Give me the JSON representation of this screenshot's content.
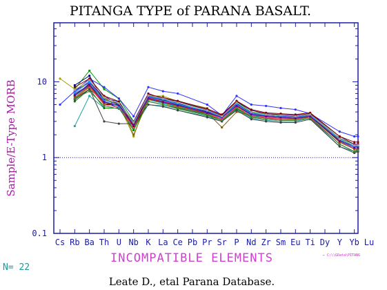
{
  "chart_data": {
    "type": "line",
    "title": "PITANGA TYPE of PARANA BASALT.",
    "ylabel": "Sample/E-Type MORB",
    "xlabel": "INCOMPATIBLE ELEMENTS",
    "categories": [
      "Cs",
      "Rb",
      "Ba",
      "Th",
      "U",
      "Nb",
      "K",
      "La",
      "Ce",
      "Pb",
      "Pr",
      "Sr",
      "P",
      "Nd",
      "Zr",
      "Sm",
      "Eu",
      "Ti",
      "Dy",
      "Y",
      "Yb",
      "Lu"
    ],
    "y_scale": "log",
    "ylim": [
      0.1,
      60
    ],
    "y_ticks": [
      "0.1",
      "1",
      "10"
    ],
    "reference_line": 1,
    "grid": false,
    "sample_count_label": "N= 22",
    "source_path": "← C:\\\\GData\\PITANG",
    "footer": "Leate D., etal Parana Database.",
    "series_colors": [
      "#000000",
      "#1010c0",
      "#00a000",
      "#c03030",
      "#20a0a0",
      "#a0a000",
      "#a020a0",
      "#3030ff",
      "#008000",
      "#600060",
      "#000080",
      "#806000",
      "#00c0c0",
      "#ff4080",
      "#404040",
      "#0060a0",
      "#a04000",
      "#2090ff",
      "#408040",
      "#800000",
      "#6000a0",
      "#a0a0a0"
    ],
    "series": [
      {
        "values": [
          null,
          6.5,
          9.0,
          5.0,
          5.0,
          2.5,
          5.5,
          5.0,
          4.5,
          null,
          3.8,
          3.3,
          4.8,
          3.6,
          3.4,
          3.3,
          3.3,
          3.5,
          null,
          1.6,
          1.3,
          1.3
        ]
      },
      {
        "values": [
          null,
          7.5,
          10.0,
          6.0,
          5.5,
          2.8,
          6.0,
          5.5,
          5.0,
          null,
          4.0,
          3.5,
          5.2,
          3.8,
          3.6,
          3.5,
          3.4,
          3.6,
          null,
          1.7,
          1.4,
          1.4
        ]
      },
      {
        "values": [
          null,
          8.0,
          14.0,
          8.0,
          6.0,
          3.0,
          6.5,
          6.0,
          5.5,
          null,
          4.2,
          3.6,
          5.5,
          4.0,
          3.8,
          3.6,
          3.5,
          3.7,
          null,
          1.8,
          1.5,
          1.5
        ]
      },
      {
        "values": [
          null,
          6.0,
          8.0,
          5.5,
          4.8,
          2.6,
          5.8,
          5.2,
          4.6,
          null,
          3.7,
          3.2,
          4.6,
          3.5,
          3.3,
          3.2,
          3.2,
          3.4,
          null,
          1.5,
          1.2,
          1.2
        ]
      },
      {
        "values": [
          null,
          2.6,
          6.5,
          4.5,
          4.5,
          2.4,
          5.0,
          4.8,
          4.2,
          null,
          3.5,
          3.0,
          4.3,
          3.3,
          3.1,
          3.0,
          3.0,
          3.3,
          null,
          1.4,
          1.2,
          1.2
        ]
      },
      {
        "values": [
          11.0,
          8.0,
          9.5,
          6.0,
          5.0,
          1.9,
          6.5,
          6.5,
          5.5,
          null,
          4.5,
          3.0,
          4.5,
          3.8,
          3.5,
          3.4,
          3.3,
          3.6,
          null,
          1.6,
          1.3,
          1.3
        ]
      },
      {
        "values": [
          null,
          7.0,
          9.0,
          5.5,
          4.5,
          2.8,
          6.0,
          5.5,
          5.0,
          null,
          4.0,
          3.4,
          5.0,
          3.7,
          3.5,
          3.4,
          3.3,
          3.6,
          null,
          1.7,
          1.4,
          1.4
        ]
      },
      {
        "values": [
          5.0,
          7.5,
          11.0,
          8.5,
          6.0,
          3.5,
          8.5,
          7.5,
          7.0,
          null,
          5.0,
          3.6,
          6.5,
          5.0,
          4.8,
          4.5,
          4.3,
          3.8,
          null,
          2.2,
          1.9,
          1.9
        ]
      },
      {
        "values": [
          null,
          5.5,
          8.0,
          4.5,
          4.5,
          2.3,
          5.5,
          5.0,
          4.4,
          null,
          3.6,
          3.1,
          4.4,
          3.4,
          3.2,
          3.1,
          3.1,
          3.3,
          null,
          1.5,
          1.2,
          1.3
        ]
      },
      {
        "values": [
          null,
          6.5,
          9.5,
          6.5,
          5.0,
          3.0,
          7.0,
          6.0,
          5.5,
          null,
          4.3,
          3.6,
          5.5,
          4.2,
          3.8,
          3.7,
          3.6,
          3.8,
          null,
          1.9,
          1.5,
          1.5
        ]
      },
      {
        "values": [
          null,
          9.0,
          12.0,
          5.5,
          4.5,
          2.7,
          6.5,
          5.8,
          5.2,
          null,
          4.0,
          3.5,
          4.9,
          3.8,
          3.6,
          3.5,
          3.5,
          3.6,
          null,
          1.7,
          1.4,
          1.4
        ]
      },
      {
        "values": [
          null,
          6.0,
          8.5,
          5.0,
          5.5,
          2.0,
          5.8,
          5.5,
          4.6,
          null,
          3.9,
          2.5,
          4.0,
          3.6,
          3.3,
          3.3,
          3.2,
          3.5,
          null,
          1.6,
          1.3,
          1.3
        ]
      },
      {
        "values": [
          null,
          6.5,
          9.0,
          5.5,
          4.8,
          2.7,
          5.8,
          5.2,
          4.7,
          null,
          3.8,
          3.3,
          4.8,
          3.6,
          3.4,
          3.3,
          3.3,
          3.5,
          null,
          1.6,
          1.3,
          1.3
        ]
      },
      {
        "values": [
          null,
          7.0,
          8.5,
          5.0,
          4.6,
          2.5,
          6.2,
          5.6,
          4.8,
          null,
          3.9,
          3.2,
          4.7,
          3.7,
          3.4,
          3.3,
          3.3,
          3.5,
          null,
          1.6,
          1.3,
          1.3
        ]
      },
      {
        "values": [
          null,
          5.8,
          8.0,
          3.0,
          2.8,
          2.8,
          5.0,
          4.7,
          4.2,
          null,
          3.4,
          3.0,
          4.2,
          3.2,
          3.0,
          2.9,
          2.9,
          3.2,
          null,
          1.4,
          1.15,
          1.2
        ]
      },
      {
        "values": [
          null,
          6.8,
          9.2,
          5.8,
          5.0,
          2.9,
          6.3,
          5.7,
          5.0,
          null,
          4.1,
          3.5,
          5.1,
          3.9,
          3.6,
          3.5,
          3.4,
          3.6,
          null,
          1.7,
          1.4,
          1.4
        ]
      },
      {
        "values": [
          null,
          6.2,
          8.8,
          5.2,
          4.9,
          2.6,
          5.9,
          5.3,
          4.8,
          null,
          3.8,
          3.4,
          4.9,
          3.7,
          3.5,
          3.4,
          3.3,
          3.5,
          null,
          1.6,
          1.3,
          1.3
        ]
      },
      {
        "values": [
          null,
          7.2,
          9.8,
          5.6,
          4.7,
          2.8,
          6.4,
          5.9,
          5.1,
          null,
          4.1,
          3.4,
          5.0,
          3.8,
          3.6,
          3.5,
          3.4,
          3.6,
          null,
          1.8,
          1.4,
          1.45
        ]
      },
      {
        "values": [
          null,
          6.0,
          7.5,
          4.8,
          4.4,
          3.0,
          5.5,
          5.0,
          4.5,
          null,
          3.7,
          3.1,
          4.5,
          3.4,
          3.2,
          3.1,
          3.1,
          3.3,
          null,
          1.5,
          1.2,
          1.25
        ]
      },
      {
        "values": [
          null,
          8.5,
          11.0,
          6.5,
          5.5,
          2.6,
          6.8,
          6.2,
          5.6,
          null,
          4.4,
          3.7,
          5.6,
          4.3,
          3.9,
          3.8,
          3.7,
          3.9,
          null,
          1.9,
          1.6,
          1.6
        ]
      },
      {
        "values": [
          null,
          6.6,
          9.1,
          5.4,
          4.9,
          2.7,
          6.1,
          5.4,
          4.9,
          null,
          3.9,
          3.4,
          4.8,
          3.7,
          3.5,
          3.4,
          3.3,
          3.5,
          null,
          1.65,
          1.35,
          1.35
        ]
      },
      {
        "values": [
          null,
          7.8,
          10.5,
          6.2,
          5.2,
          2.9,
          6.6,
          6.0,
          5.3,
          null,
          4.2,
          3.5,
          5.3,
          4.0,
          3.7,
          3.6,
          3.5,
          3.7,
          null,
          1.75,
          1.45,
          1.45
        ]
      }
    ]
  }
}
